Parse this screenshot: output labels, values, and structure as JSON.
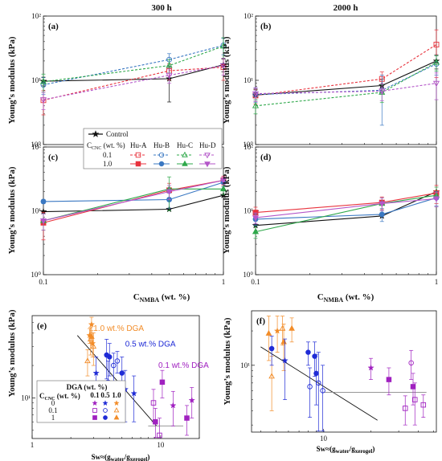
{
  "figure": {
    "col_titles": [
      "300 h",
      "2000 h"
    ],
    "ylabel": "Young’s modulus (kPa)",
    "xlabel_main": "C",
    "xlabel_sub": "NMBA",
    "xlabel_unit": " (wt. %)",
    "sw_label_main": "Sw≈(g",
    "sw_label_sub1": "water",
    "sw_label_mid": "/g",
    "sw_label_sub2": "xerogel",
    "sw_label_end": ")"
  },
  "legend_top": {
    "control": "Control",
    "ccnc_main": "C",
    "ccnc_sub": "CNC",
    "ccnc_unit": " (wt. %)",
    "groups": [
      "Hu-A",
      "Hu-B",
      "Hu-C",
      "Hu-D"
    ],
    "rows": [
      "0.1",
      "1.0"
    ]
  },
  "legend_e": {
    "dga_header": "DGA (wt. %)",
    "dga_cols": [
      "0.1",
      "0.5",
      "1.0"
    ],
    "ccnc_main": "C",
    "ccnc_sub": "CNC",
    "ccnc_unit": " (wt. %)",
    "rows": [
      "0",
      "0.1",
      "1"
    ]
  },
  "colors": {
    "control": "#111111",
    "Hu-A": "#e8323c",
    "Hu-B": "#3a78c2",
    "Hu-C": "#2ea84a",
    "Hu-D": "#b456c9",
    "dga_1.0": "#f28c28",
    "dga_0.5": "#1f2bd6",
    "dga_0.1": "#a020c0"
  },
  "chart_data": [
    {
      "id": "a",
      "panel_label": "(a)",
      "type": "line",
      "xscale": "log",
      "yscale": "log",
      "x": [
        0.1,
        0.5,
        1.0
      ],
      "xlim": [
        0.1,
        1.0
      ],
      "ylim": [
        1,
        100
      ],
      "yticks": [
        "10⁰",
        "10¹",
        "10²"
      ],
      "series": [
        {
          "key": "control",
          "values": [
            9.7,
            10.6,
            17.5
          ],
          "err": [
            1.5,
            6,
            4
          ],
          "style": "solid",
          "marker": "star"
        },
        {
          "key": "Hu-A",
          "values": [
            4.9,
            14.1,
            16.0
          ],
          "err": [
            2.0,
            4,
            6
          ],
          "style": "dashed",
          "marker": "square-open"
        },
        {
          "key": "Hu-B",
          "values": [
            8.5,
            21.0,
            35.0
          ],
          "err": [
            2.5,
            5,
            10
          ],
          "style": "dashed",
          "marker": "circle-open"
        },
        {
          "key": "Hu-C",
          "values": [
            9.5,
            17.0,
            34.0
          ],
          "err": [
            3.0,
            4,
            12
          ],
          "style": "dashed",
          "marker": "tri-up-open"
        },
        {
          "key": "Hu-D",
          "values": [
            5.0,
            12.0,
            17.0
          ],
          "err": [
            1.5,
            3,
            5
          ],
          "style": "dashed",
          "marker": "tri-down-open"
        }
      ]
    },
    {
      "id": "b",
      "panel_label": "(b)",
      "type": "line",
      "xscale": "log",
      "yscale": "log",
      "x": [
        0.1,
        0.5,
        1.0
      ],
      "xlim": [
        0.1,
        1.0
      ],
      "ylim": [
        1,
        100
      ],
      "yticks": [
        "10⁰",
        "10¹",
        "10²"
      ],
      "series": [
        {
          "key": "control",
          "values": [
            5.9,
            8.3,
            20.0
          ],
          "err": [
            1.2,
            2,
            5
          ],
          "style": "solid",
          "marker": "star"
        },
        {
          "key": "Hu-A",
          "values": [
            5.8,
            10.5,
            36.0
          ],
          "err": [
            1.5,
            3,
            25
          ],
          "style": "dashed",
          "marker": "square-open"
        },
        {
          "key": "Hu-B",
          "values": [
            6.0,
            7.0,
            18.0
          ],
          "err": [
            1.5,
            5,
            6
          ],
          "style": "dashed",
          "marker": "circle-open"
        },
        {
          "key": "Hu-C",
          "values": [
            4.0,
            6.5,
            19.0
          ],
          "err": [
            1.0,
            2,
            5
          ],
          "style": "dashed",
          "marker": "tri-up-open"
        },
        {
          "key": "Hu-D",
          "values": [
            6.2,
            6.8,
            9.0
          ],
          "err": [
            1.5,
            2,
            4
          ],
          "style": "dashed",
          "marker": "tri-down-open"
        }
      ]
    },
    {
      "id": "c",
      "panel_label": "(c)",
      "type": "line",
      "xscale": "log",
      "yscale": "log",
      "x": [
        0.1,
        0.5,
        1.0
      ],
      "xlim": [
        0.1,
        1.0
      ],
      "ylim": [
        1,
        100
      ],
      "yticks": [
        "10⁰",
        "10¹",
        "10²"
      ],
      "series": [
        {
          "key": "control",
          "values": [
            9.7,
            10.6,
            17.5
          ],
          "err": [
            0,
            0,
            0
          ],
          "style": "solid",
          "marker": "star"
        },
        {
          "key": "Hu-A",
          "values": [
            6.5,
            21.0,
            30.0
          ],
          "err": [
            3,
            6,
            5
          ],
          "style": "solid",
          "marker": "square-filled"
        },
        {
          "key": "Hu-B",
          "values": [
            14.0,
            15.0,
            28.0
          ],
          "err": [
            1,
            4,
            4
          ],
          "style": "solid",
          "marker": "circle-filled"
        },
        {
          "key": "Hu-C",
          "values": [
            7.0,
            22.0,
            22.0
          ],
          "err": [
            2,
            12,
            4
          ],
          "style": "solid",
          "marker": "tri-up-filled"
        },
        {
          "key": "Hu-D",
          "values": [
            7.0,
            20.0,
            30.0
          ],
          "err": [
            2,
            5,
            4
          ],
          "style": "solid",
          "marker": "tri-down-filled"
        }
      ]
    },
    {
      "id": "d",
      "panel_label": "(d)",
      "type": "line",
      "xscale": "log",
      "yscale": "log",
      "x": [
        0.1,
        0.5,
        1.0
      ],
      "xlim": [
        0.1,
        1.0
      ],
      "ylim": [
        1,
        100
      ],
      "yticks": [
        "10⁰",
        "10¹",
        "10²"
      ],
      "series": [
        {
          "key": "control",
          "values": [
            5.9,
            8.3,
            20.0
          ],
          "err": [
            0,
            0,
            0
          ],
          "style": "solid",
          "marker": "star"
        },
        {
          "key": "Hu-A",
          "values": [
            9.4,
            13.5,
            19.0
          ],
          "err": [
            2,
            3,
            6
          ],
          "style": "solid",
          "marker": "square-filled"
        },
        {
          "key": "Hu-B",
          "values": [
            7.4,
            8.8,
            16.0
          ],
          "err": [
            1.5,
            2,
            4
          ],
          "style": "solid",
          "marker": "circle-filled"
        },
        {
          "key": "Hu-C",
          "values": [
            4.7,
            13.0,
            17.5
          ],
          "err": [
            1,
            3,
            6
          ],
          "style": "solid",
          "marker": "tri-up-filled"
        },
        {
          "key": "Hu-D",
          "values": [
            7.8,
            13.0,
            15.5
          ],
          "err": [
            1.5,
            3,
            4
          ],
          "style": "solid",
          "marker": "tri-down-filled"
        }
      ]
    },
    {
      "id": "e",
      "panel_label": "(e)",
      "type": "scatter",
      "xscale": "log",
      "yscale": "log",
      "xlim": [
        1,
        20
      ],
      "ylim": [
        4.2,
        58
      ],
      "xticks": [
        "1",
        "10"
      ],
      "yticks": [
        "10¹"
      ],
      "annotations": [
        {
          "text": "1.0 wt.% DGA",
          "key": "dga_1.0",
          "x": 3.0,
          "y": 42
        },
        {
          "text": "0.5 wt.% DGA",
          "key": "dga_0.5",
          "x": 5.3,
          "y": 30
        },
        {
          "text": "0.1 wt.% DGA",
          "key": "dga_0.1",
          "x": 9.6,
          "y": 19
        }
      ],
      "fit_line": {
        "x": [
          2.25,
          9.3
        ],
        "y": [
          38,
          5.5
        ]
      },
      "plateau_line": {
        "x": [
          8.0,
          15.0
        ],
        "y": [
          5.5,
          5.5
        ]
      },
      "points": [
        {
          "x": 2.8,
          "y": 38,
          "err": 6,
          "key": "dga_1.0",
          "m": "star"
        },
        {
          "x": 2.9,
          "y": 48,
          "err": 8,
          "key": "dga_1.0",
          "m": "star"
        },
        {
          "x": 2.95,
          "y": 32,
          "err": 8,
          "key": "dga_1.0",
          "m": "star"
        },
        {
          "x": 2.7,
          "y": 22,
          "err": 6,
          "key": "dga_1.0",
          "m": "tri-up-open"
        },
        {
          "x": 2.85,
          "y": 35,
          "err": 10,
          "key": "dga_1.0",
          "m": "tri-up-open"
        },
        {
          "x": 3.0,
          "y": 30,
          "err": 10,
          "key": "dga_1.0",
          "m": "tri-up-open"
        },
        {
          "x": 2.9,
          "y": 37,
          "err": 5,
          "key": "dga_1.0",
          "m": "tri-up-filled"
        },
        {
          "x": 3.15,
          "y": 17,
          "err": 7,
          "key": "dga_0.5",
          "m": "star"
        },
        {
          "x": 3.8,
          "y": 25,
          "err": 10,
          "key": "dga_0.5",
          "m": "circle-filled"
        },
        {
          "x": 4.0,
          "y": 24,
          "err": 8,
          "key": "dga_0.5",
          "m": "circle-filled"
        },
        {
          "x": 3.9,
          "y": 14,
          "err": 8,
          "key": "dga_0.5",
          "m": "circle-open"
        },
        {
          "x": 4.3,
          "y": 20,
          "err": 6,
          "key": "dga_0.5",
          "m": "circle-open"
        },
        {
          "x": 4.6,
          "y": 22,
          "err": 5,
          "key": "dga_0.5",
          "m": "circle-open"
        },
        {
          "x": 5.0,
          "y": 17,
          "err": 7,
          "key": "dga_0.5",
          "m": "circle-filled"
        },
        {
          "x": 5.3,
          "y": 12,
          "err": 6,
          "key": "dga_0.5",
          "m": "star"
        },
        {
          "x": 6.2,
          "y": 11,
          "err": 5,
          "key": "dga_0.5",
          "m": "star"
        },
        {
          "x": 8.8,
          "y": 9.0,
          "err": 3,
          "key": "dga_0.1",
          "m": "square-open"
        },
        {
          "x": 9.1,
          "y": 6.0,
          "err": 2,
          "key": "dga_0.1",
          "m": "square-filled"
        },
        {
          "x": 9.8,
          "y": 4.5,
          "err": 2,
          "key": "dga_0.1",
          "m": "square-open"
        },
        {
          "x": 10.3,
          "y": 14,
          "err": 4,
          "key": "dga_0.1",
          "m": "square-filled"
        },
        {
          "x": 12.5,
          "y": 8.5,
          "err": 3,
          "key": "dga_0.1",
          "m": "star"
        },
        {
          "x": 16.0,
          "y": 6.5,
          "err": 2,
          "key": "dga_0.1",
          "m": "square-filled"
        },
        {
          "x": 17.5,
          "y": 9.5,
          "err": 3,
          "key": "dga_0.1",
          "m": "star"
        }
      ]
    },
    {
      "id": "f",
      "panel_label": "(f)",
      "type": "scatter",
      "xscale": "log",
      "yscale": "log",
      "xlim": [
        3.5,
        52
      ],
      "ylim": [
        2.6,
        30
      ],
      "xticks": [
        "10"
      ],
      "yticks": [
        "10¹"
      ],
      "fit_line": {
        "x": [
          4.0,
          22.0
        ],
        "y": [
          14.5,
          3.3
        ]
      },
      "plateau_line": {
        "x": [
          10.0,
          45.0
        ],
        "y": [
          5.8,
          5.8
        ]
      },
      "points": [
        {
          "x": 4.5,
          "y": 19,
          "err": 8,
          "key": "dga_1.0",
          "m": "tri-up-filled"
        },
        {
          "x": 4.7,
          "y": 8,
          "err": 4,
          "key": "dga_1.0",
          "m": "tri-up-open"
        },
        {
          "x": 5.1,
          "y": 20,
          "err": 7,
          "key": "dga_1.0",
          "m": "star"
        },
        {
          "x": 5.5,
          "y": 21,
          "err": 6,
          "key": "dga_1.0",
          "m": "tri-up-open"
        },
        {
          "x": 5.6,
          "y": 16,
          "err": 7,
          "key": "dga_1.0",
          "m": "tri-up-filled"
        },
        {
          "x": 6.3,
          "y": 21,
          "err": 5,
          "key": "dga_1.0",
          "m": "tri-up-filled"
        },
        {
          "x": 4.7,
          "y": 14,
          "err": 4,
          "key": "dga_0.5",
          "m": "circle-filled"
        },
        {
          "x": 5.7,
          "y": 11,
          "err": 6,
          "key": "dga_0.5",
          "m": "star"
        },
        {
          "x": 8.0,
          "y": 13,
          "err": 3,
          "key": "dga_0.5",
          "m": "circle-filled"
        },
        {
          "x": 8.2,
          "y": 6.5,
          "err": 3,
          "key": "dga_0.5",
          "m": "circle-open"
        },
        {
          "x": 8.8,
          "y": 12,
          "err": 4,
          "key": "dga_0.5",
          "m": "circle-filled"
        },
        {
          "x": 9.0,
          "y": 8.5,
          "err": 4,
          "key": "dga_0.5",
          "m": "circle-filled"
        },
        {
          "x": 9.3,
          "y": 7.0,
          "err": 6,
          "key": "dga_0.5",
          "m": "circle-open"
        },
        {
          "x": 9.9,
          "y": 6.0,
          "err": 4,
          "key": "dga_0.5",
          "m": "circle-open"
        },
        {
          "x": 20.0,
          "y": 9.5,
          "err": 2,
          "key": "dga_0.1",
          "m": "star"
        },
        {
          "x": 26.0,
          "y": 7.5,
          "err": 2,
          "key": "dga_0.1",
          "m": "square-filled"
        },
        {
          "x": 33.0,
          "y": 4.2,
          "err": 1.2,
          "key": "dga_0.1",
          "m": "square-open"
        },
        {
          "x": 36.0,
          "y": 10.5,
          "err": 3,
          "key": "dga_0.1",
          "m": "circle-open"
        },
        {
          "x": 37.0,
          "y": 6.5,
          "err": 2,
          "key": "dga_0.1",
          "m": "square-filled"
        },
        {
          "x": 38.0,
          "y": 5.0,
          "err": 2,
          "key": "dga_0.1",
          "m": "square-open"
        },
        {
          "x": 43.0,
          "y": 4.5,
          "err": 1,
          "key": "dga_0.1",
          "m": "square-open"
        }
      ]
    }
  ]
}
